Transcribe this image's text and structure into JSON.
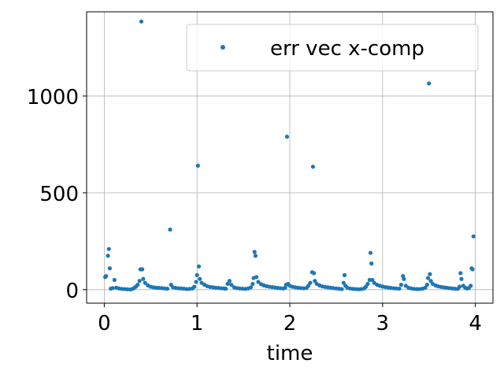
{
  "chart_data": {
    "type": "scatter",
    "title": "",
    "xlabel": "time",
    "ylabel": "",
    "xlim": [
      -0.19,
      4.19
    ],
    "ylim": [
      -70,
      1435
    ],
    "xticks": [
      0,
      1,
      2,
      3,
      4
    ],
    "yticks": [
      0,
      500,
      1000
    ],
    "grid": true,
    "legend": {
      "position": "top-right"
    },
    "series": [
      {
        "name": "err vec x-comp",
        "color": "#1f77b4",
        "points": [
          [
            0.01,
            65
          ],
          [
            0.02,
            70
          ],
          [
            0.04,
            175
          ],
          [
            0.05,
            210
          ],
          [
            0.06,
            110
          ],
          [
            0.07,
            5
          ],
          [
            0.09,
            8
          ],
          [
            0.11,
            50
          ],
          [
            0.13,
            10
          ],
          [
            0.16,
            6
          ],
          [
            0.19,
            4
          ],
          [
            0.22,
            3
          ],
          [
            0.25,
            2
          ],
          [
            0.28,
            1
          ],
          [
            0.3,
            3
          ],
          [
            0.32,
            8
          ],
          [
            0.34,
            15
          ],
          [
            0.36,
            25
          ],
          [
            0.38,
            45
          ],
          [
            0.39,
            105
          ],
          [
            0.4,
            1385
          ],
          [
            0.41,
            105
          ],
          [
            0.42,
            55
          ],
          [
            0.44,
            35
          ],
          [
            0.47,
            22
          ],
          [
            0.5,
            15
          ],
          [
            0.53,
            12
          ],
          [
            0.56,
            10
          ],
          [
            0.59,
            9
          ],
          [
            0.62,
            8
          ],
          [
            0.65,
            6
          ],
          [
            0.68,
            5
          ],
          [
            0.71,
            310
          ],
          [
            0.72,
            25
          ],
          [
            0.74,
            12
          ],
          [
            0.77,
            9
          ],
          [
            0.8,
            7
          ],
          [
            0.83,
            6
          ],
          [
            0.86,
            5
          ],
          [
            0.89,
            3
          ],
          [
            0.92,
            4
          ],
          [
            0.95,
            6
          ],
          [
            0.97,
            15
          ],
          [
            0.99,
            40
          ],
          [
            1.0,
            75
          ],
          [
            1.01,
            640
          ],
          [
            1.02,
            120
          ],
          [
            1.03,
            55
          ],
          [
            1.05,
            35
          ],
          [
            1.08,
            25
          ],
          [
            1.11,
            18
          ],
          [
            1.14,
            14
          ],
          [
            1.17,
            12
          ],
          [
            1.2,
            10
          ],
          [
            1.23,
            9
          ],
          [
            1.26,
            7
          ],
          [
            1.29,
            6
          ],
          [
            1.31,
            5
          ],
          [
            1.33,
            30
          ],
          [
            1.35,
            45
          ],
          [
            1.37,
            25
          ],
          [
            1.4,
            12
          ],
          [
            1.43,
            8
          ],
          [
            1.46,
            6
          ],
          [
            1.49,
            5
          ],
          [
            1.52,
            4
          ],
          [
            1.55,
            6
          ],
          [
            1.58,
            12
          ],
          [
            1.6,
            30
          ],
          [
            1.61,
            60
          ],
          [
            1.62,
            195
          ],
          [
            1.63,
            175
          ],
          [
            1.64,
            65
          ],
          [
            1.66,
            40
          ],
          [
            1.69,
            28
          ],
          [
            1.72,
            22
          ],
          [
            1.75,
            18
          ],
          [
            1.78,
            15
          ],
          [
            1.81,
            13
          ],
          [
            1.84,
            11
          ],
          [
            1.87,
            9
          ],
          [
            1.9,
            7
          ],
          [
            1.93,
            6
          ],
          [
            1.95,
            10
          ],
          [
            1.96,
            25
          ],
          [
            1.97,
            790
          ],
          [
            1.98,
            30
          ],
          [
            2.0,
            20
          ],
          [
            2.03,
            15
          ],
          [
            2.06,
            12
          ],
          [
            2.09,
            10
          ],
          [
            2.12,
            8
          ],
          [
            2.15,
            7
          ],
          [
            2.18,
            9
          ],
          [
            2.2,
            20
          ],
          [
            2.22,
            35
          ],
          [
            2.24,
            90
          ],
          [
            2.25,
            635
          ],
          [
            2.26,
            85
          ],
          [
            2.27,
            45
          ],
          [
            2.29,
            30
          ],
          [
            2.32,
            22
          ],
          [
            2.35,
            17
          ],
          [
            2.38,
            14
          ],
          [
            2.41,
            12
          ],
          [
            2.44,
            10
          ],
          [
            2.47,
            8
          ],
          [
            2.5,
            6
          ],
          [
            2.53,
            5
          ],
          [
            2.56,
            3
          ],
          [
            2.58,
            35
          ],
          [
            2.59,
            75
          ],
          [
            2.6,
            20
          ],
          [
            2.62,
            10
          ],
          [
            2.65,
            6
          ],
          [
            2.68,
            4
          ],
          [
            2.71,
            3
          ],
          [
            2.74,
            2
          ],
          [
            2.77,
            3
          ],
          [
            2.8,
            6
          ],
          [
            2.82,
            15
          ],
          [
            2.84,
            30
          ],
          [
            2.86,
            50
          ],
          [
            2.87,
            190
          ],
          [
            2.88,
            135
          ],
          [
            2.89,
            50
          ],
          [
            2.91,
            35
          ],
          [
            2.94,
            25
          ],
          [
            2.97,
            20
          ],
          [
            3.0,
            16
          ],
          [
            3.03,
            13
          ],
          [
            3.06,
            11
          ],
          [
            3.09,
            9
          ],
          [
            3.12,
            7
          ],
          [
            3.15,
            6
          ],
          [
            3.18,
            5
          ],
          [
            3.2,
            25
          ],
          [
            3.22,
            70
          ],
          [
            3.23,
            55
          ],
          [
            3.25,
            20
          ],
          [
            3.28,
            10
          ],
          [
            3.31,
            6
          ],
          [
            3.34,
            4
          ],
          [
            3.37,
            3
          ],
          [
            3.4,
            3
          ],
          [
            3.43,
            5
          ],
          [
            3.46,
            10
          ],
          [
            3.48,
            25
          ],
          [
            3.49,
            60
          ],
          [
            3.5,
            1065
          ],
          [
            3.51,
            80
          ],
          [
            3.52,
            45
          ],
          [
            3.54,
            30
          ],
          [
            3.57,
            22
          ],
          [
            3.6,
            17
          ],
          [
            3.63,
            14
          ],
          [
            3.66,
            12
          ],
          [
            3.69,
            10
          ],
          [
            3.72,
            8
          ],
          [
            3.75,
            6
          ],
          [
            3.78,
            5
          ],
          [
            3.81,
            4
          ],
          [
            3.83,
            15
          ],
          [
            3.84,
            85
          ],
          [
            3.85,
            55
          ],
          [
            3.87,
            20
          ],
          [
            3.89,
            10
          ],
          [
            3.91,
            6
          ],
          [
            3.93,
            8
          ],
          [
            3.95,
            20
          ],
          [
            3.96,
            110
          ],
          [
            3.97,
            105
          ],
          [
            3.98,
            275
          ]
        ]
      }
    ]
  }
}
